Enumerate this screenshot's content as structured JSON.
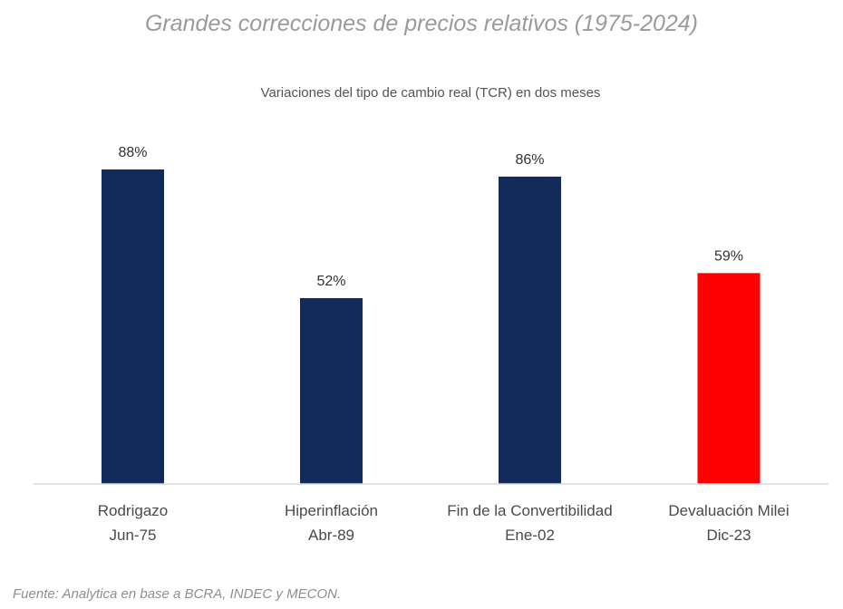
{
  "header": {
    "title": "Grandes correcciones de precios relativos (1975-2024)"
  },
  "footer": {
    "source": "Fuente: Analytica en base a BCRA, INDEC y MECON."
  },
  "chart_data": {
    "type": "bar",
    "title": "Grandes correcciones de precios relativos (1975-2024)",
    "subtitle": "Variaciones del tipo de cambio real (TCR) en dos meses",
    "categories": [
      {
        "name": "Rodrigazo",
        "date": "Jun-75"
      },
      {
        "name": "Hiperinflación",
        "date": "Abr-89"
      },
      {
        "name": "Fin de la Convertibilidad",
        "date": "Ene-02"
      },
      {
        "name": "Devaluación Milei",
        "date": "Dic-23"
      }
    ],
    "values": [
      88,
      52,
      86,
      59
    ],
    "value_labels": [
      "88%",
      "52%",
      "86%",
      "59%"
    ],
    "colors": [
      "#132b5a",
      "#132b5a",
      "#132b5a",
      "#ff0000"
    ],
    "axis_color": "#d9d9d9",
    "ylim": [
      0,
      100
    ],
    "xlabel": "",
    "ylabel": "",
    "grid": false,
    "legend": "none"
  }
}
